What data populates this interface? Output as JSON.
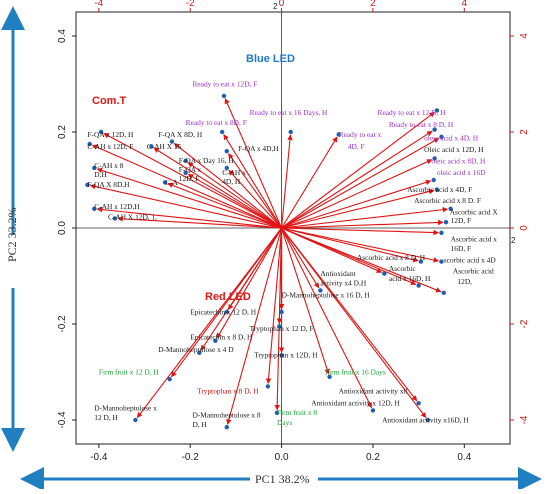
{
  "chart_data": {
    "type": "biplot",
    "xlabel": "PC1 38.2%",
    "ylabel": "PC2 33.2%",
    "xlim": [
      -0.45,
      0.5
    ],
    "ylim": [
      -0.45,
      0.45
    ],
    "xticks": [
      -0.4,
      -0.2,
      0.0,
      0.2,
      0.4
    ],
    "yticks": [
      -0.4,
      -0.2,
      0.0,
      0.2,
      0.4
    ],
    "xticks_top": [
      -4,
      -2,
      0,
      2,
      4
    ],
    "yticks_right": [
      -4,
      -2,
      0,
      2,
      4
    ],
    "colors": {
      "arrow": "#e01515",
      "point": "#1f5fb0",
      "axis_arrow": "#1f7fc0"
    },
    "group_labels": [
      {
        "text": "Com.T",
        "color": "#e01515"
      },
      {
        "text": "Blue LED",
        "color": "#1f77c8"
      },
      {
        "text": "Red LED",
        "color": "#e01515"
      }
    ],
    "observations": [
      {
        "label": "Ready to eat x 12D, F",
        "x": -0.126,
        "y": 0.275,
        "color": "purple"
      },
      {
        "label": "Ready to eat x 8D, F",
        "x": -0.13,
        "y": 0.2,
        "color": "purple"
      },
      {
        "label": "Ready to eat x 16 Days, H",
        "x": 0.02,
        "y": 0.2,
        "color": "purple"
      },
      {
        "label": "Ready to eat x 4D, F",
        "x": 0.125,
        "y": 0.195,
        "color": "purple"
      },
      {
        "label": "Ready to eat x 12 D, H",
        "x": 0.34,
        "y": 0.245,
        "color": "purple"
      },
      {
        "label": "Ready to eat x 8 D, H",
        "x": 0.335,
        "y": 0.205,
        "color": "purple"
      },
      {
        "label": "oleic acid x 4D, H",
        "x": 0.35,
        "y": 0.19,
        "color": "purple"
      },
      {
        "label": "Oleic acid x 12D, H",
        "x": 0.335,
        "y": 0.145,
        "color": "black"
      },
      {
        "label": "oleic acid x 8D, H",
        "x": 0.333,
        "y": 0.1,
        "color": "purple"
      },
      {
        "label": "oleic acid x 16D",
        "x": 0.34,
        "y": 0.08,
        "color": "purple"
      },
      {
        "label": "Ascorbic acid x 4D, F",
        "x": 0.37,
        "y": 0.04,
        "color": "black"
      },
      {
        "label": "Ascorbic acid x 8 D. F",
        "x": 0.36,
        "y": 0.012,
        "color": "black"
      },
      {
        "label": "Ascorbic acid X 12D, F",
        "x": 0.35,
        "y": -0.01,
        "color": "black"
      },
      {
        "label": "Ascorbic acid x 16D, F",
        "x": 0.35,
        "y": -0.07,
        "color": "black"
      },
      {
        "label": "Ascorbic acid x 4D",
        "x": 0.305,
        "y": -0.07,
        "color": "black"
      },
      {
        "label": "Ascorbic acid x 16D, H",
        "x": 0.3,
        "y": -0.12,
        "color": "black"
      },
      {
        "label": "Ascorbic acid x 12D,",
        "x": 0.355,
        "y": -0.135,
        "color": "black"
      },
      {
        "label": "Ascorbic acid x 8 D, H",
        "x": 0.225,
        "y": -0.095,
        "color": "black"
      },
      {
        "label": "Antioxidant activity x4 D,H",
        "x": 0.085,
        "y": -0.13,
        "color": "black"
      },
      {
        "label": "D-Mannoheptulose x 16 D, H",
        "x": 0.0,
        "y": -0.175,
        "color": "black"
      },
      {
        "label": "F-QA x 12D, H",
        "x": -0.395,
        "y": 0.2,
        "color": "black"
      },
      {
        "label": "F-QA X 8D, H",
        "x": -0.24,
        "y": 0.18,
        "color": "black"
      },
      {
        "label": "C-AH x 12D, F",
        "x": -0.42,
        "y": 0.175,
        "color": "black"
      },
      {
        "label": "C-AH X 16 D, F",
        "x": -0.285,
        "y": 0.17,
        "color": "black"
      },
      {
        "label": "F-QA x 4D, H",
        "x": -0.12,
        "y": 0.16,
        "color": "black"
      },
      {
        "label": "F-QA x Day 16, H",
        "x": -0.21,
        "y": 0.14,
        "color": "black"
      },
      {
        "label": "C-AH x 8 D,H",
        "x": -0.41,
        "y": 0.125,
        "color": "black"
      },
      {
        "label": "F-QA x 12D, F",
        "x": -0.21,
        "y": 0.115,
        "color": "black"
      },
      {
        "label": "C-AH x 4D, H",
        "x": -0.12,
        "y": 0.125,
        "color": "black"
      },
      {
        "label": "C-A",
        "x": -0.255,
        "y": 0.095,
        "color": "black"
      },
      {
        "label": "F-QA X 8D,H",
        "x": -0.425,
        "y": 0.09,
        "color": "black"
      },
      {
        "label": "C-AH x 12D,H",
        "x": -0.41,
        "y": 0.04,
        "color": "black"
      },
      {
        "label": "C-AH X 12D, 1,",
        "x": -0.365,
        "y": 0.02,
        "color": "black"
      },
      {
        "label": "Epicatechin x 12 D, H",
        "x": -0.12,
        "y": -0.175,
        "color": "black"
      },
      {
        "label": "Tryptophan x 12 D, F",
        "x": -0.005,
        "y": -0.205,
        "color": "black"
      },
      {
        "label": "Epicatechin x 8 D, H",
        "x": -0.145,
        "y": -0.235,
        "color": "black"
      },
      {
        "label": "D-Mannoheptulose x 4 D",
        "x": -0.18,
        "y": -0.26,
        "color": "black"
      },
      {
        "label": "Tryptophan x 12D, H",
        "x": 0.0,
        "y": -0.265,
        "color": "black"
      },
      {
        "label": "Firm fruit x 12 D, H",
        "x": -0.245,
        "y": -0.315,
        "color": "green"
      },
      {
        "label": "Firm fruit x 16 Days",
        "x": 0.105,
        "y": -0.31,
        "color": "green"
      },
      {
        "label": "Tryptophan x 8 D, H",
        "x": -0.03,
        "y": -0.33,
        "color": "black"
      },
      {
        "label": "Antioxidant activity x8",
        "x": 0.3,
        "y": -0.365,
        "color": "black"
      },
      {
        "label": "D-Mannoheptulose x 12 D, H",
        "x": -0.32,
        "y": -0.4,
        "color": "black"
      },
      {
        "label": "D-Mannoheptulose x 8 D, H",
        "x": -0.12,
        "y": -0.415,
        "color": "black"
      },
      {
        "label": "Firm fruit x 8 Days",
        "x": -0.01,
        "y": -0.385,
        "color": "green"
      },
      {
        "label": "Antioxidant activity x 12D, H",
        "x": 0.2,
        "y": -0.38,
        "color": "black"
      },
      {
        "label": "Antioxidant activity x16D, H",
        "x": 0.32,
        "y": -0.4,
        "color": "black"
      }
    ],
    "labels": [
      {
        "text": "Ready to eat x 12D, F",
        "lx": -0.195,
        "ly": 0.295,
        "color": "purple"
      },
      {
        "text": "Ready to eat x 8D, F",
        "lx": -0.21,
        "ly": 0.215,
        "color": "purple"
      },
      {
        "text": "Ready to eat x 16 Days, H",
        "lx": -0.07,
        "ly": 0.235,
        "color": "purple"
      },
      {
        "text": "Ready to eat x",
        "lx": 0.125,
        "ly": 0.19,
        "color": "purple"
      },
      {
        "text": "4D, F",
        "lx": 0.145,
        "ly": 0.165,
        "color": "purple"
      },
      {
        "text": "Ready to eat x 12 D, H",
        "lx": 0.21,
        "ly": 0.235,
        "color": "purple"
      },
      {
        "text": "Ready to eat x 8 D, H",
        "lx": 0.235,
        "ly": 0.21,
        "color": "purple"
      },
      {
        "text": "oleic acid x 4D, H",
        "lx": 0.312,
        "ly": 0.182,
        "color": "purple"
      },
      {
        "text": "Oleic acid x 12D, H",
        "lx": 0.312,
        "ly": 0.158,
        "color": "black"
      },
      {
        "text": "oleic acid x 8D, H",
        "lx": 0.328,
        "ly": 0.134,
        "color": "purple"
      },
      {
        "text": "oleic acid x 16D",
        "lx": 0.34,
        "ly": 0.11,
        "color": "purple"
      },
      {
        "text": "Ascorbic acid x 4D, F",
        "lx": 0.275,
        "ly": 0.075,
        "color": "black"
      },
      {
        "text": "Ascorbic acid x 8 D. F",
        "lx": 0.29,
        "ly": 0.052,
        "color": "black"
      },
      {
        "text": "Ascorbic acid X",
        "lx": 0.368,
        "ly": 0.028,
        "color": "black"
      },
      {
        "text": "12D, F",
        "lx": 0.37,
        "ly": 0.01,
        "color": "black"
      },
      {
        "text": "Ascorbic acid x",
        "lx": 0.37,
        "ly": -0.028,
        "color": "black"
      },
      {
        "text": "16D, F",
        "lx": 0.37,
        "ly": -0.048,
        "color": "black"
      },
      {
        "text": "scorbic acid x 4D",
        "lx": 0.355,
        "ly": -0.072,
        "color": "black"
      },
      {
        "text": "Ascorbic acid",
        "lx": 0.375,
        "ly": -0.095,
        "color": "black"
      },
      {
        "text": "12D,",
        "lx": 0.385,
        "ly": -0.117,
        "color": "black"
      },
      {
        "text": "Ascorbic",
        "lx": 0.235,
        "ly": -0.09,
        "color": "black"
      },
      {
        "text": "acid x 16D, H",
        "lx": 0.235,
        "ly": -0.11,
        "color": "black"
      },
      {
        "text": "Ascorbic acid x 8 D, H",
        "lx": 0.165,
        "ly": -0.067,
        "color": "black"
      },
      {
        "text": "Antioxidant",
        "lx": 0.085,
        "ly": -0.1,
        "color": "black"
      },
      {
        "text": "activity x4 D,H",
        "lx": 0.085,
        "ly": -0.12,
        "color": "black"
      },
      {
        "text": "D-Mannoheptulose x 16 D, H",
        "lx": 0.0,
        "ly": -0.145,
        "color": "black"
      },
      {
        "text": "F-QA x 12D, H",
        "lx": -0.425,
        "ly": 0.19,
        "color": "black"
      },
      {
        "text": "F-QA X 8D, H",
        "lx": -0.27,
        "ly": 0.19,
        "color": "black"
      },
      {
        "text": "C-AH x 12D, F",
        "lx": -0.425,
        "ly": 0.165,
        "color": "black"
      },
      {
        "text": "C-AH X 16",
        "lx": -0.295,
        "ly": 0.165,
        "color": "black"
      },
      {
        "text": "F-QA x 4D,H",
        "lx": -0.095,
        "ly": 0.16,
        "color": "black"
      },
      {
        "text": "F-QA x Day 16, H",
        "lx": -0.225,
        "ly": 0.135,
        "color": "black"
      },
      {
        "text": "C-AH x 8",
        "lx": -0.41,
        "ly": 0.125,
        "color": "black"
      },
      {
        "text": "D,H",
        "lx": -0.41,
        "ly": 0.106,
        "color": "black"
      },
      {
        "text": "F-QA x",
        "lx": -0.225,
        "ly": 0.117,
        "color": "black"
      },
      {
        "text": "12D, F",
        "lx": -0.225,
        "ly": 0.098,
        "color": "black"
      },
      {
        "text": "C-AH x",
        "lx": -0.13,
        "ly": 0.11,
        "color": "black"
      },
      {
        "text": "4D, H",
        "lx": -0.13,
        "ly": 0.092,
        "color": "black"
      },
      {
        "text": "C-A",
        "lx": -0.255,
        "ly": 0.09,
        "color": "black"
      },
      {
        "text": "F-QA X 8D,H",
        "lx": -0.425,
        "ly": 0.085,
        "color": "black"
      },
      {
        "text": "C-AH x 12D,H",
        "lx": -0.41,
        "ly": 0.04,
        "color": "black"
      },
      {
        "text": "C-AH X 12D, 1,",
        "lx": -0.38,
        "ly": 0.018,
        "color": "black"
      },
      {
        "text": "Epicatechin x 12 D, H",
        "lx": -0.2,
        "ly": -0.18,
        "color": "black"
      },
      {
        "text": "Tryptophan x 12 D, F",
        "lx": -0.07,
        "ly": -0.215,
        "color": "black"
      },
      {
        "text": "Epicatechin x 8 D, H",
        "lx": -0.2,
        "ly": -0.232,
        "color": "black"
      },
      {
        "text": "D-Mannoheptulose x 4 D",
        "lx": -0.27,
        "ly": -0.258,
        "color": "black"
      },
      {
        "text": "Tryptophan x 12D, H",
        "lx": -0.06,
        "ly": -0.27,
        "color": "black"
      },
      {
        "text": "Firm fruit x 12 D, H",
        "lx": -0.4,
        "ly": -0.305,
        "color": "green"
      },
      {
        "text": "Firm fruit x 16 Days",
        "lx": 0.095,
        "ly": -0.305,
        "color": "green"
      },
      {
        "text": "Tryptophan x 8 D, H",
        "lx": -0.185,
        "ly": -0.345,
        "color": "red"
      },
      {
        "text": "Antioxidant activity x8",
        "lx": 0.125,
        "ly": -0.345,
        "color": "black"
      },
      {
        "text": "Antioxidant activity x 12D, H",
        "lx": 0.065,
        "ly": -0.37,
        "color": "black"
      },
      {
        "text": "D-Mannoheptulose x",
        "lx": -0.41,
        "ly": -0.38,
        "color": "black"
      },
      {
        "text": "12 D, H",
        "lx": -0.41,
        "ly": -0.4,
        "color": "black"
      },
      {
        "text": "D-Mannoheptulose x 8",
        "lx": -0.195,
        "ly": -0.395,
        "color": "black"
      },
      {
        "text": "D, H",
        "lx": -0.195,
        "ly": -0.415,
        "color": "black"
      },
      {
        "text": "Firm fruit x 8",
        "lx": -0.01,
        "ly": -0.39,
        "color": "green"
      },
      {
        "text": "Days",
        "lx": -0.01,
        "ly": -0.41,
        "color": "green"
      },
      {
        "text": "Antioxidant activity x16D, H",
        "lx": 0.22,
        "ly": -0.405,
        "color": "black"
      }
    ]
  },
  "side_arrow_top_tick": "2",
  "side_arrow_right_tick": "2"
}
